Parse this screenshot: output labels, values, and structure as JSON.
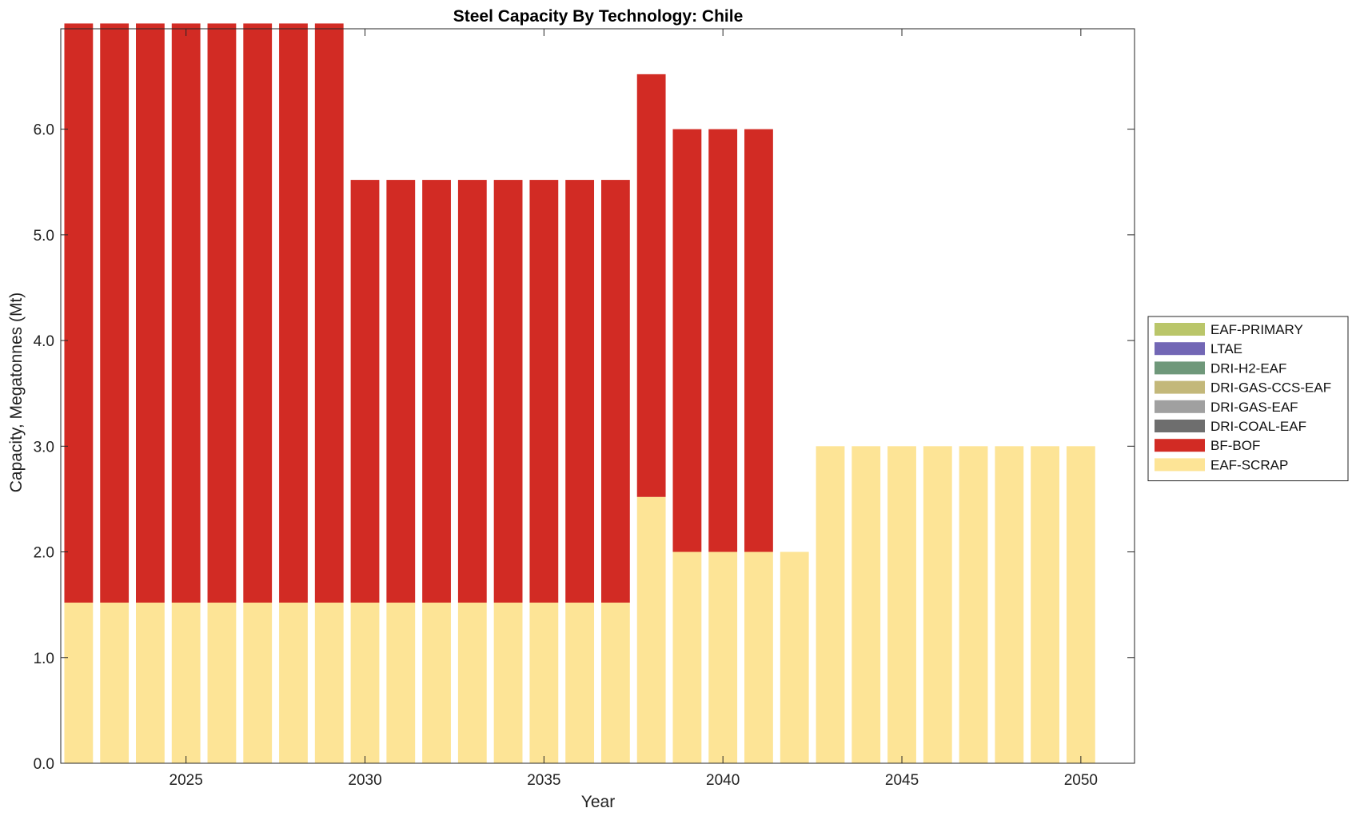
{
  "chart_data": {
    "type": "bar",
    "stacked": true,
    "title": "Steel Capacity By Technology: Chile",
    "xlabel": "Year",
    "ylabel": "Capacity, Megatonnes (Mt)",
    "xlim": [
      2021.5,
      2051.5
    ],
    "ylim": [
      0,
      6.95
    ],
    "x": [
      2022,
      2023,
      2024,
      2025,
      2026,
      2027,
      2028,
      2029,
      2030,
      2031,
      2032,
      2033,
      2034,
      2035,
      2036,
      2037,
      2038,
      2039,
      2040,
      2041,
      2042,
      2043,
      2044,
      2045,
      2046,
      2047,
      2048,
      2049,
      2050
    ],
    "x_ticks": [
      2025,
      2030,
      2035,
      2040,
      2045,
      2050
    ],
    "x_tick_labels": [
      "2025",
      "2030",
      "2035",
      "2040",
      "2045",
      "2050"
    ],
    "y_ticks": [
      0,
      1,
      2,
      3,
      4,
      5,
      6
    ],
    "y_tick_labels": [
      "0.0",
      "1.0",
      "2.0",
      "3.0",
      "4.0",
      "5.0",
      "6.0"
    ],
    "legend_position": "right",
    "series": [
      {
        "name": "EAF-SCRAP",
        "color": "#fde496",
        "values": [
          1.52,
          1.52,
          1.52,
          1.52,
          1.52,
          1.52,
          1.52,
          1.52,
          1.52,
          1.52,
          1.52,
          1.52,
          1.52,
          1.52,
          1.52,
          1.52,
          2.52,
          2.0,
          2.0,
          2.0,
          2.0,
          3.0,
          3.0,
          3.0,
          3.0,
          3.0,
          3.0,
          3.0,
          3.0
        ]
      },
      {
        "name": "BF-BOF",
        "color": "#d22b24",
        "values": [
          5.48,
          5.48,
          5.48,
          5.48,
          5.48,
          5.48,
          5.48,
          5.48,
          4.0,
          4.0,
          4.0,
          4.0,
          4.0,
          4.0,
          4.0,
          4.0,
          4.0,
          4.0,
          4.0,
          4.0,
          0,
          0,
          0,
          0,
          0,
          0,
          0,
          0,
          0
        ]
      },
      {
        "name": "DRI-COAL-EAF",
        "color": "#6e6e6e",
        "values": [
          0,
          0,
          0,
          0,
          0,
          0,
          0,
          0,
          0,
          0,
          0,
          0,
          0,
          0,
          0,
          0,
          0,
          0,
          0,
          0,
          0,
          0,
          0,
          0,
          0,
          0,
          0,
          0,
          0
        ]
      },
      {
        "name": "DRI-GAS-EAF",
        "color": "#a0a0a0",
        "values": [
          0,
          0,
          0,
          0,
          0,
          0,
          0,
          0,
          0,
          0,
          0,
          0,
          0,
          0,
          0,
          0,
          0,
          0,
          0,
          0,
          0,
          0,
          0,
          0,
          0,
          0,
          0,
          0,
          0
        ]
      },
      {
        "name": "DRI-GAS-CCS-EAF",
        "color": "#c3b87a",
        "values": [
          0,
          0,
          0,
          0,
          0,
          0,
          0,
          0,
          0,
          0,
          0,
          0,
          0,
          0,
          0,
          0,
          0,
          0,
          0,
          0,
          0,
          0,
          0,
          0,
          0,
          0,
          0,
          0,
          0
        ]
      },
      {
        "name": "DRI-H2-EAF",
        "color": "#6f987a",
        "values": [
          0,
          0,
          0,
          0,
          0,
          0,
          0,
          0,
          0,
          0,
          0,
          0,
          0,
          0,
          0,
          0,
          0,
          0,
          0,
          0,
          0,
          0,
          0,
          0,
          0,
          0,
          0,
          0,
          0
        ]
      },
      {
        "name": "LTAE",
        "color": "#7267b5",
        "values": [
          0,
          0,
          0,
          0,
          0,
          0,
          0,
          0,
          0,
          0,
          0,
          0,
          0,
          0,
          0,
          0,
          0,
          0,
          0,
          0,
          0,
          0,
          0,
          0,
          0,
          0,
          0,
          0,
          0
        ]
      },
      {
        "name": "EAF-PRIMARY",
        "color": "#bac66a",
        "values": [
          0,
          0,
          0,
          0,
          0,
          0,
          0,
          0,
          0,
          0,
          0,
          0,
          0,
          0,
          0,
          0,
          0,
          0,
          0,
          0,
          0,
          0,
          0,
          0,
          0,
          0,
          0,
          0,
          0
        ]
      }
    ],
    "legend_order": [
      "EAF-PRIMARY",
      "LTAE",
      "DRI-H2-EAF",
      "DRI-GAS-CCS-EAF",
      "DRI-GAS-EAF",
      "DRI-COAL-EAF",
      "BF-BOF",
      "EAF-SCRAP"
    ]
  }
}
